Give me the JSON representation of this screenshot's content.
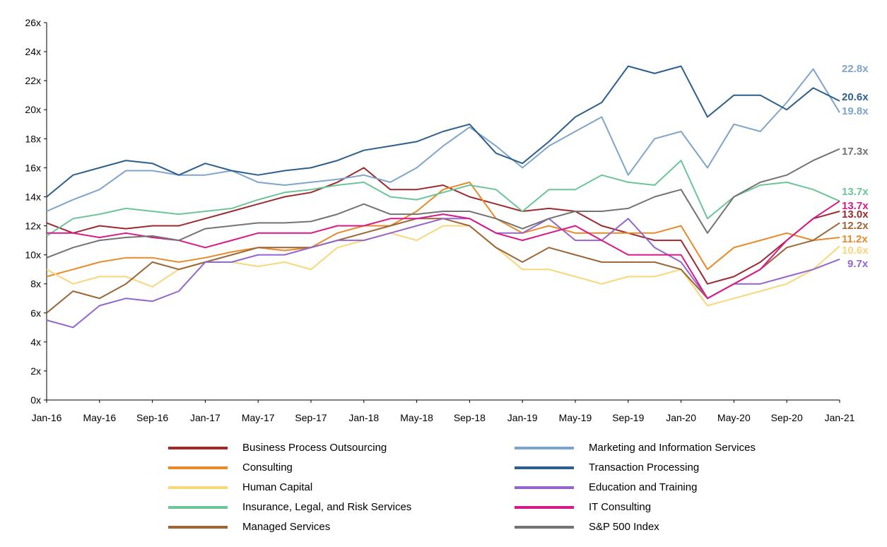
{
  "chart_data": {
    "type": "line",
    "title": "",
    "xlabel": "",
    "ylabel": "",
    "ylim": [
      0,
      26
    ],
    "yticks": [
      "0x",
      "2x",
      "4x",
      "6x",
      "8x",
      "10x",
      "12x",
      "14x",
      "16x",
      "18x",
      "20x",
      "22x",
      "24x",
      "26x"
    ],
    "xticks": [
      "Jan-16",
      "May-16",
      "Sep-16",
      "Jan-17",
      "May-17",
      "Sep-17",
      "Jan-18",
      "May-18",
      "Sep-18",
      "Jan-19",
      "May-19",
      "Sep-19",
      "Jan-20",
      "May-20",
      "Sep-20",
      "Jan-21"
    ],
    "x_note": "bi-monthly samples from Jan-16 to Jan-21",
    "x": [
      "Jan-16",
      "Mar-16",
      "May-16",
      "Jul-16",
      "Sep-16",
      "Nov-16",
      "Jan-17",
      "Mar-17",
      "May-17",
      "Jul-17",
      "Sep-17",
      "Nov-17",
      "Jan-18",
      "Mar-18",
      "May-18",
      "Jul-18",
      "Sep-18",
      "Nov-18",
      "Jan-19",
      "Mar-19",
      "May-19",
      "Jul-19",
      "Sep-19",
      "Nov-19",
      "Jan-20",
      "Mar-20",
      "May-20",
      "Jul-20",
      "Sep-20",
      "Nov-20",
      "Jan-21"
    ],
    "legend_position": "bottom",
    "grid": false,
    "series": [
      {
        "name": "Business Process Outsourcing",
        "color": "#9b2a2f",
        "end_label": "13.0x",
        "values": [
          12.2,
          11.5,
          12.0,
          11.8,
          12.0,
          12.0,
          12.5,
          13.0,
          13.5,
          14.0,
          14.3,
          15.0,
          16.0,
          14.5,
          14.5,
          14.8,
          14.0,
          13.5,
          13.0,
          13.2,
          13.0,
          12.0,
          11.5,
          11.0,
          11.0,
          8.0,
          8.5,
          9.5,
          11.0,
          12.5,
          13.0
        ]
      },
      {
        "name": "Consulting",
        "color": "#e8892a",
        "end_label": "11.2x",
        "values": [
          8.5,
          9.0,
          9.5,
          9.8,
          9.8,
          9.5,
          9.8,
          10.2,
          10.5,
          10.3,
          10.5,
          11.5,
          12.0,
          12.0,
          13.0,
          14.5,
          15.0,
          12.5,
          11.5,
          12.0,
          11.5,
          11.5,
          11.5,
          11.5,
          12.0,
          9.0,
          10.5,
          11.0,
          11.5,
          11.0,
          11.2
        ]
      },
      {
        "name": "Human Capital",
        "color": "#f8d67a",
        "end_label": "10.6x",
        "values": [
          9.0,
          8.0,
          8.5,
          8.5,
          7.8,
          9.0,
          9.5,
          9.5,
          9.2,
          9.5,
          9.0,
          10.5,
          11.0,
          11.5,
          11.0,
          12.0,
          12.0,
          10.5,
          9.0,
          9.0,
          8.5,
          8.0,
          8.5,
          8.5,
          9.0,
          6.5,
          7.0,
          7.5,
          8.0,
          9.0,
          10.6
        ]
      },
      {
        "name": "Insurance, Legal, and Risk Services",
        "color": "#6cc597",
        "end_label": "13.7x",
        "values": [
          11.3,
          12.5,
          12.8,
          13.2,
          13.0,
          12.8,
          13.0,
          13.2,
          13.8,
          14.3,
          14.5,
          14.8,
          15.0,
          14.0,
          13.8,
          14.3,
          14.8,
          14.5,
          13.0,
          14.5,
          14.5,
          15.5,
          15.0,
          14.8,
          16.5,
          12.5,
          14.0,
          14.8,
          15.0,
          14.5,
          13.7
        ]
      },
      {
        "name": "Managed Services",
        "color": "#9c6535",
        "end_label": "12.2x",
        "values": [
          6.0,
          7.5,
          7.0,
          8.0,
          9.5,
          9.0,
          9.5,
          10.0,
          10.5,
          10.5,
          10.5,
          11.0,
          11.5,
          12.0,
          12.5,
          12.5,
          12.0,
          10.5,
          9.5,
          10.5,
          10.0,
          9.5,
          9.5,
          9.5,
          9.0,
          7.0,
          8.0,
          9.0,
          10.5,
          11.0,
          12.2
        ]
      },
      {
        "name": "Marketing and Information Services",
        "color": "#7fa4cb",
        "end_label": "19.8x",
        "extra_label": "22.8x",
        "values": [
          13.0,
          13.8,
          14.5,
          15.8,
          15.8,
          15.5,
          15.5,
          15.8,
          15.0,
          14.8,
          15.0,
          15.2,
          15.5,
          15.0,
          16.0,
          17.5,
          18.8,
          17.5,
          16.0,
          17.5,
          18.5,
          19.5,
          15.5,
          18.0,
          18.5,
          16.0,
          19.0,
          18.5,
          20.5,
          22.8,
          19.8
        ]
      },
      {
        "name": "Transaction Processing",
        "color": "#2c5f8e",
        "end_label": "20.6x",
        "values": [
          14.0,
          15.5,
          16.0,
          16.5,
          16.3,
          15.5,
          16.3,
          15.8,
          15.5,
          15.8,
          16.0,
          16.5,
          17.2,
          17.5,
          17.8,
          18.5,
          19.0,
          17.0,
          16.3,
          17.8,
          19.5,
          20.5,
          23.0,
          22.5,
          23.0,
          19.5,
          21.0,
          21.0,
          20.0,
          21.5,
          20.6
        ]
      },
      {
        "name": "Education and Training",
        "color": "#9266cc",
        "end_label": "9.7x",
        "values": [
          5.5,
          5.0,
          6.5,
          7.0,
          6.8,
          7.5,
          9.5,
          9.5,
          10.0,
          10.0,
          10.5,
          11.0,
          11.0,
          11.5,
          12.0,
          12.5,
          12.5,
          11.5,
          11.5,
          12.5,
          11.0,
          11.0,
          12.5,
          10.5,
          9.5,
          7.0,
          8.0,
          8.0,
          8.5,
          9.0,
          9.7
        ]
      },
      {
        "name": "IT Consulting",
        "color": "#d6198b",
        "end_label": "13.7x",
        "values": [
          11.5,
          11.5,
          11.2,
          11.5,
          11.2,
          11.0,
          10.5,
          11.0,
          11.5,
          11.5,
          11.5,
          12.0,
          12.0,
          12.5,
          12.5,
          12.8,
          12.5,
          11.5,
          11.0,
          11.5,
          12.0,
          11.0,
          10.0,
          10.0,
          10.0,
          7.0,
          8.0,
          9.0,
          11.0,
          12.5,
          13.7
        ]
      },
      {
        "name": "S&P 500 Index",
        "color": "#737373",
        "end_label": "17.3x",
        "values": [
          9.8,
          10.5,
          11.0,
          11.2,
          11.3,
          11.0,
          11.8,
          12.0,
          12.2,
          12.2,
          12.3,
          12.8,
          13.5,
          12.8,
          12.8,
          13.0,
          13.0,
          12.5,
          11.8,
          12.5,
          13.0,
          13.0,
          13.2,
          14.0,
          14.5,
          11.5,
          14.0,
          15.0,
          15.5,
          16.5,
          17.3
        ]
      }
    ]
  }
}
